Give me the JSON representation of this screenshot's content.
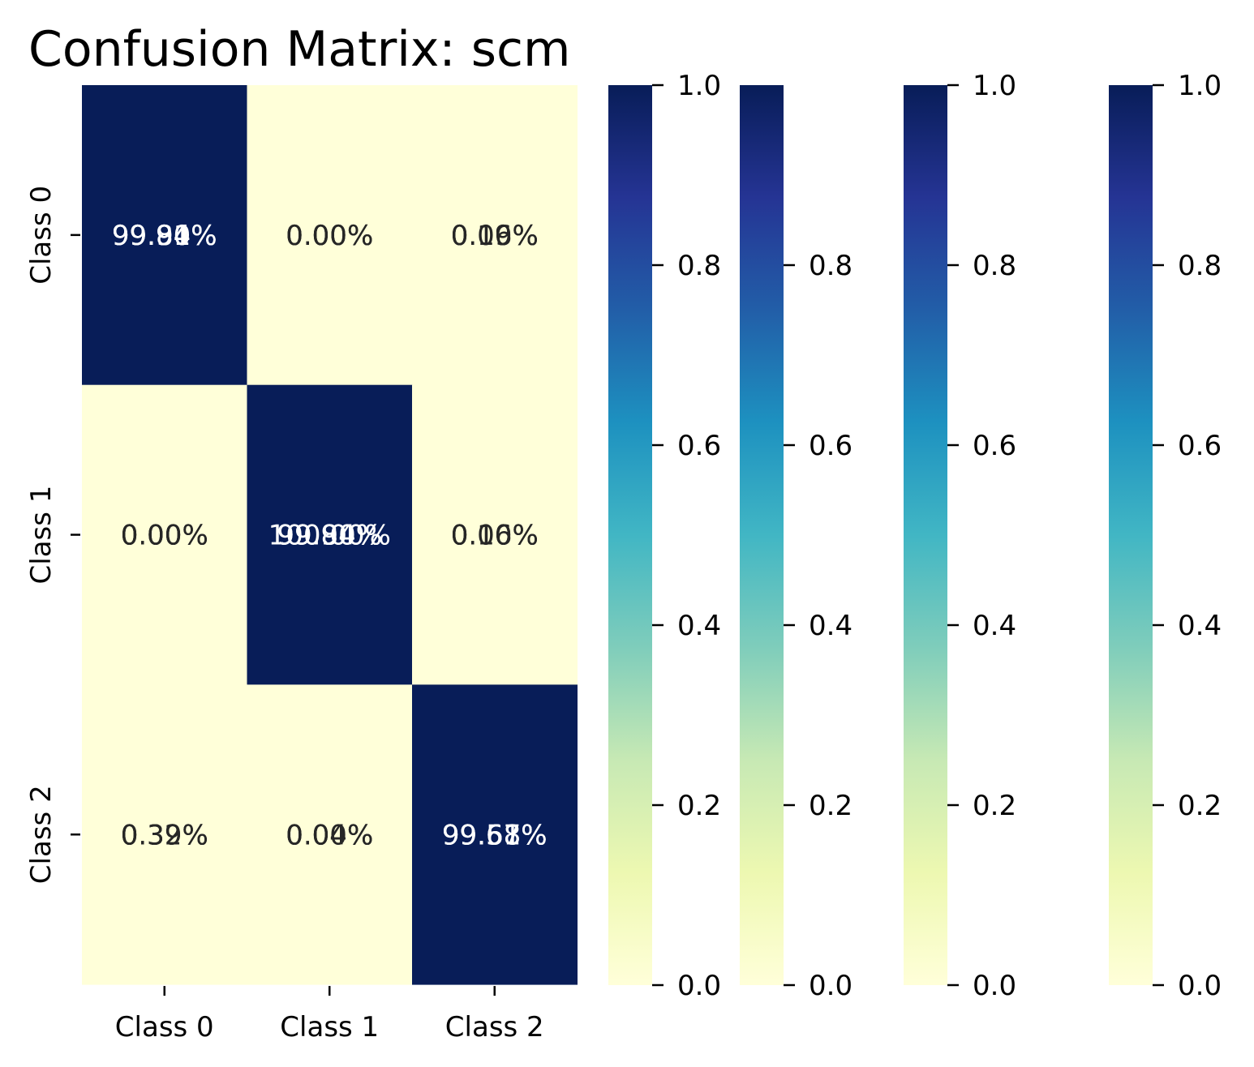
{
  "chart_data": {
    "type": "heatmap",
    "title": "Confusion Matrix: scm",
    "x_tick_labels": [
      "Class 0",
      "Class 1",
      "Class 2"
    ],
    "y_tick_labels": [
      "Class 0",
      "Class 1",
      "Class 2"
    ],
    "colormap": "YlGnBu",
    "colormap_stops": [
      "#ffffd9",
      "#edf8b1",
      "#c7e9b4",
      "#7fcdbb",
      "#41b6c4",
      "#1d91c0",
      "#225ea8",
      "#253494",
      "#081d58"
    ],
    "value_range": [
      0,
      1.0
    ],
    "values": [
      [
        1.0,
        0.0,
        0.0
      ],
      [
        0.0,
        1.0,
        0.0
      ],
      [
        0.0,
        0.0,
        1.0
      ]
    ],
    "cell_annotations": [
      [
        [
          "99.84%",
          "99.91%",
          "99.90%"
        ],
        [
          "0.00%",
          "0.00%",
          "0.00%"
        ],
        [
          "0.16%",
          "0.09%",
          "0.10%"
        ]
      ],
      [
        [
          "0.00%",
          "0.00%",
          "0.00%"
        ],
        [
          "99.84%",
          "100.00%",
          "99.90%"
        ],
        [
          "0.16%",
          "0.00%",
          "0.10%"
        ]
      ],
      [
        [
          "0.39%",
          "0.32%",
          "0.39%"
        ],
        [
          "0.04%",
          "0.00%",
          "0.04%"
        ],
        [
          "99.57%",
          "99.68%",
          "99.61%"
        ]
      ]
    ],
    "colorbars": [
      {
        "ticks": [
          "0.0",
          "0.2",
          "0.4",
          "0.6",
          "0.8",
          "1.0"
        ]
      },
      {
        "ticks": [
          "0.0",
          "0.2",
          "0.4",
          "0.6",
          "0.8"
        ]
      },
      {
        "ticks": [
          "0.0",
          "0.2",
          "0.4",
          "0.6",
          "0.8",
          "1.0"
        ]
      },
      {
        "ticks": [
          "0.0",
          "0.2",
          "0.4",
          "0.6",
          "0.8",
          "1.0"
        ]
      }
    ],
    "annotation_colors": {
      "on_dark": "#ffffff",
      "on_light": "#262626"
    }
  }
}
